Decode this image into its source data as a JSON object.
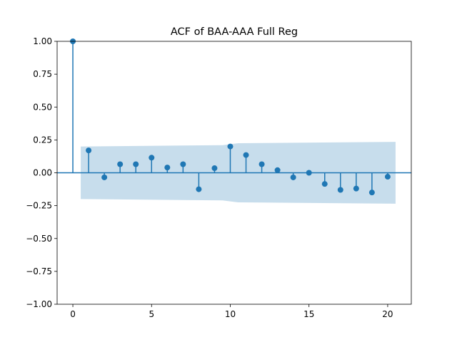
{
  "chart_data": {
    "type": "stem",
    "title": "ACF of BAA-AAA Full Reg",
    "xlabel": "",
    "ylabel": "",
    "xlim": [
      -1,
      21.5
    ],
    "ylim": [
      -1.0,
      1.0
    ],
    "x_ticks": [
      0,
      5,
      10,
      15,
      20
    ],
    "x_tick_labels": [
      "0",
      "5",
      "10",
      "15",
      "20"
    ],
    "y_ticks": [
      1.0,
      0.75,
      0.5,
      0.25,
      0.0,
      -0.25,
      -0.5,
      -0.75,
      -1.0
    ],
    "y_tick_labels": [
      "1.00",
      "0.75",
      "0.50",
      "0.25",
      "0.00",
      "−0.25",
      "−0.50",
      "−0.75",
      "−1.00"
    ],
    "lags": [
      0,
      1,
      2,
      3,
      4,
      5,
      6,
      7,
      8,
      9,
      10,
      11,
      12,
      13,
      14,
      15,
      16,
      17,
      18,
      19,
      20
    ],
    "values": [
      1.0,
      0.17,
      -0.035,
      0.065,
      0.065,
      0.115,
      0.04,
      0.065,
      -0.125,
      0.035,
      0.2,
      0.135,
      0.065,
      0.02,
      -0.035,
      0.0,
      -0.085,
      -0.13,
      -0.12,
      -0.15,
      -0.03
    ],
    "confidence_band": {
      "lags": [
        0.5,
        9.5,
        10.5,
        20.5
      ],
      "upper": [
        0.2,
        0.21,
        0.225,
        0.235
      ],
      "lower": [
        -0.2,
        -0.21,
        -0.225,
        -0.235
      ]
    },
    "grid": false,
    "colors": {
      "stem": "#1f77b4",
      "band": "#1f77b4",
      "zero_line": "#1f77b4"
    }
  }
}
